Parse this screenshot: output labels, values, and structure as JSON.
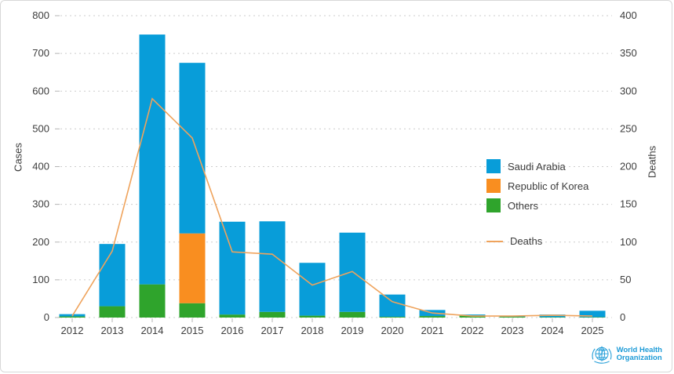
{
  "chart_data": {
    "type": "bar",
    "subtype": "stacked-bars-with-secondary-axis-line",
    "title": "",
    "categories": [
      "2012",
      "2013",
      "2014",
      "2015",
      "2016",
      "2017",
      "2018",
      "2019",
      "2020",
      "2021",
      "2022",
      "2023",
      "2024",
      "2025"
    ],
    "series": [
      {
        "name": "Saudi Arabia",
        "type": "bar",
        "color": "#089dd9",
        "values": [
          6,
          165,
          662,
          452,
          246,
          240,
          140,
          210,
          59,
          16,
          3,
          2,
          7,
          17
        ]
      },
      {
        "name": "Republic of Korea",
        "type": "bar",
        "color": "#f98e20",
        "values": [
          0,
          0,
          0,
          185,
          0,
          0,
          0,
          0,
          0,
          0,
          0,
          0,
          0,
          0
        ]
      },
      {
        "name": "Others",
        "type": "bar",
        "color": "#2fa42c",
        "values": [
          3,
          30,
          88,
          38,
          8,
          15,
          5,
          15,
          2,
          4,
          5,
          2,
          1,
          1
        ]
      },
      {
        "name": "Deaths",
        "type": "line",
        "axis": "right",
        "color": "#efa35c",
        "values": [
          2,
          88,
          290,
          238,
          87,
          84,
          43,
          61,
          21,
          6,
          2,
          2,
          3,
          2
        ]
      }
    ],
    "stack_order_bottom_to_top": [
      "Others",
      "Republic of Korea",
      "Saudi Arabia"
    ],
    "left_axis": {
      "label": "Cases",
      "min": 0,
      "max": 800,
      "tick_step": 100
    },
    "right_axis": {
      "label": "Deaths",
      "min": 0,
      "max": 400,
      "tick_step": 50
    },
    "grid": {
      "horizontal": true,
      "style": "dashed",
      "color": "#cccccc"
    },
    "legend_position": "right-center"
  },
  "branding": {
    "org_line1": "World Health",
    "org_line2": "Organization"
  }
}
